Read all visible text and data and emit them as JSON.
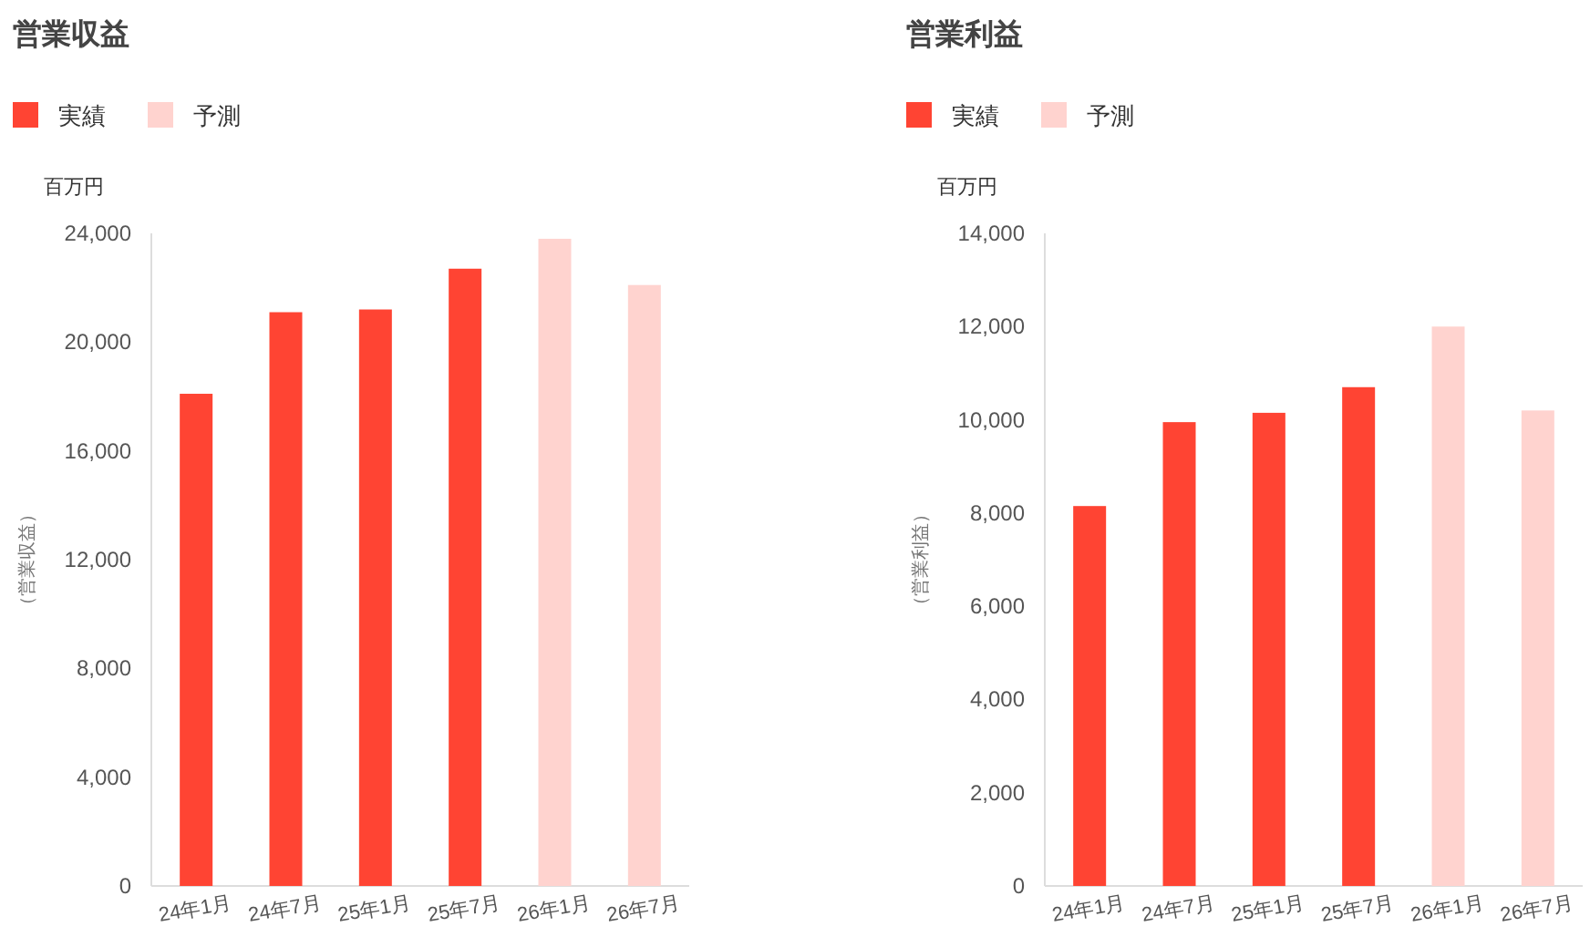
{
  "chart_data": [
    {
      "type": "bar",
      "title": "営業収益",
      "ylabel": "（営業収益）",
      "annotations": [
        "百万円"
      ],
      "categories": [
        "24年1月",
        "24年7月",
        "25年1月",
        "25年7月",
        "26年1月",
        "26年7月"
      ],
      "series": [
        {
          "name": "実績",
          "color": "#ff4433",
          "values": [
            18100,
            21100,
            21200,
            22700,
            null,
            null
          ]
        },
        {
          "name": "予測",
          "color": "#ffd3cf",
          "values": [
            null,
            null,
            null,
            null,
            23800,
            22100
          ]
        }
      ],
      "ylim": [
        0,
        24000
      ],
      "yticks": [
        {
          "value": 0,
          "label": "0"
        },
        {
          "value": 4000,
          "label": "4,000"
        },
        {
          "value": 8000,
          "label": "8,000"
        },
        {
          "value": 12000,
          "label": "12,000"
        },
        {
          "value": 16000,
          "label": "16,000"
        },
        {
          "value": 20000,
          "label": "20,000"
        },
        {
          "value": 24000,
          "label": "24,000"
        }
      ],
      "legend": "top left"
    },
    {
      "type": "bar",
      "title": "営業利益",
      "ylabel": "（営業利益）",
      "annotations": [
        "百万円"
      ],
      "categories": [
        "24年1月",
        "24年7月",
        "25年1月",
        "25年7月",
        "26年1月",
        "26年7月"
      ],
      "series": [
        {
          "name": "実績",
          "color": "#ff4433",
          "values": [
            8150,
            9950,
            10150,
            10700,
            null,
            null
          ]
        },
        {
          "name": "予測",
          "color": "#ffd3cf",
          "values": [
            null,
            null,
            null,
            null,
            12000,
            10200
          ]
        }
      ],
      "ylim": [
        0,
        14000
      ],
      "yticks": [
        {
          "value": 0,
          "label": "0"
        },
        {
          "value": 2000,
          "label": "2,000"
        },
        {
          "value": 4000,
          "label": "4,000"
        },
        {
          "value": 6000,
          "label": "6,000"
        },
        {
          "value": 8000,
          "label": "8,000"
        },
        {
          "value": 10000,
          "label": "10,000"
        },
        {
          "value": 12000,
          "label": "12,000"
        },
        {
          "value": 14000,
          "label": "14,000"
        }
      ],
      "legend": "top left"
    }
  ]
}
